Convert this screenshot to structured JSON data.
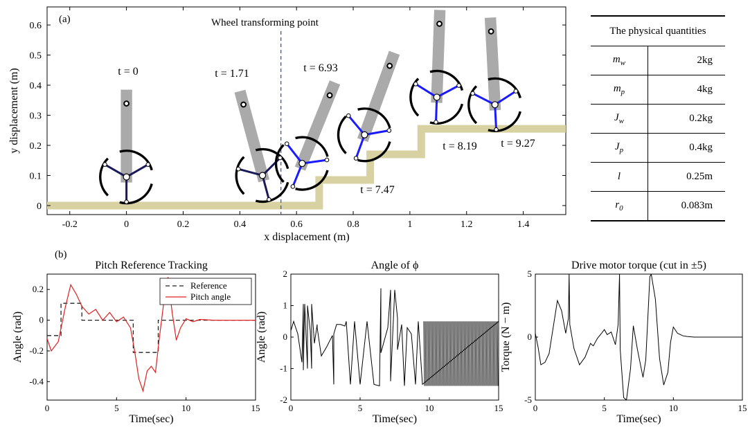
{
  "top": {
    "panel_label": "(a)",
    "annotation": "Wheel transforming point",
    "time_labels": [
      "t = 0",
      "t = 1.71",
      "t = 6.93",
      "t = 7.47",
      "t = 8.19",
      "t = 9.27"
    ],
    "x_ticks": [
      "-0.2",
      "0",
      "0.2",
      "0.4",
      "0.6",
      "0.8",
      "1",
      "1.2",
      "1.4"
    ],
    "y_ticks": [
      "0",
      "0.1",
      "0.2",
      "0.3",
      "0.4",
      "0.5",
      "0.6"
    ]
  },
  "table": {
    "header": "The physical quantities",
    "rows": [
      {
        "q": "m_w",
        "v": "2kg"
      },
      {
        "q": "m_p",
        "v": "4kg"
      },
      {
        "q": "J_w",
        "v": "0.2kg"
      },
      {
        "q": "J_p",
        "v": "0.4kg"
      },
      {
        "q": "l",
        "v": "0.25m"
      },
      {
        "q": "r_0",
        "v": "0.083m"
      }
    ]
  },
  "bottom": {
    "panel_label": "(b)",
    "xlabel": "Time(sec)",
    "x_ticks": [
      "0",
      "5",
      "10",
      "15"
    ],
    "pitch_title": "Pitch Reference Tracking",
    "pitch_y_ticks": [
      "0.2",
      "0",
      "-0.2",
      "-0.4"
    ],
    "phi_title": "Angle of ϕ",
    "phi_y_ticks": [
      "2",
      "1",
      "0",
      "-1",
      "-2"
    ],
    "torque_title": "Drive motor torque (cut in ±5)",
    "torque_y_ticks": [
      "5",
      "0",
      "-5"
    ]
  },
  "colors": {
    "ground": "#d8d2a2",
    "body": "#aaaaaa",
    "spoke": "#1a1aff",
    "hub": "#1a1a5a",
    "pitch": "#e02020",
    "reference": "#222222"
  },
  "chart_data": [
    {
      "type": "line",
      "title": "",
      "xlabel": "x displacement (m)",
      "ylabel": "y displacement (m)",
      "xlim": [
        -0.28,
        1.55
      ],
      "ylim": [
        -0.03,
        0.66
      ],
      "series": [
        {
          "values": [
            [
              -0.28,
              0
            ],
            [
              0.68,
              0
            ],
            [
              0.68,
              0.085
            ],
            [
              0.86,
              0.085
            ],
            [
              0.86,
              0.17
            ],
            [
              1.04,
              0.17
            ],
            [
              1.04,
              0.255
            ],
            [
              1.55,
              0.255
            ]
          ]
        }
      ]
    },
    {
      "type": "line",
      "title": "Pitch Reference Tracking",
      "xlabel": "Time(sec)",
      "ylabel": "Angle (rad)",
      "xlim": [
        0,
        15
      ],
      "ylim": [
        -0.52,
        0.3
      ],
      "legend": "top-right",
      "series": [
        {
          "name": "Reference",
          "x": [
            0,
            1.0,
            1.0,
            2.5,
            2.5,
            6.2,
            6.2,
            8.0,
            8.0,
            8.5,
            8.5,
            15
          ],
          "y": [
            -0.1,
            -0.1,
            0.11,
            0.11,
            0,
            0,
            -0.21,
            -0.21,
            0,
            0,
            0,
            0
          ]
        },
        {
          "name": "Pitch angle",
          "x": [
            0,
            0.3,
            0.8,
            1.3,
            1.7,
            2.1,
            2.5,
            3.0,
            3.5,
            4.0,
            4.5,
            5.0,
            5.5,
            6.0,
            6.3,
            6.6,
            6.9,
            7.2,
            7.5,
            7.8,
            8.1,
            8.4,
            8.7,
            9.0,
            9.3,
            9.6,
            10.0,
            10.5,
            11,
            12,
            15
          ],
          "y": [
            -0.12,
            -0.2,
            -0.14,
            0.08,
            0.23,
            0.17,
            0.09,
            0.04,
            0.07,
            0.0,
            0.05,
            -0.01,
            0.02,
            -0.05,
            -0.2,
            -0.38,
            -0.46,
            -0.33,
            -0.3,
            -0.34,
            -0.1,
            0.12,
            0.28,
            0.05,
            -0.13,
            -0.05,
            0.01,
            -0.01,
            0.005,
            0,
            0
          ]
        }
      ]
    },
    {
      "type": "line",
      "title": "Angle of ϕ",
      "xlabel": "Time(sec)",
      "ylabel": "Angle (rad)",
      "xlim": [
        0,
        15
      ],
      "ylim": [
        -2,
        2
      ],
      "series": [
        {
          "x": [
            0,
            0.2,
            0.5,
            0.8,
            0.9,
            0.9,
            1.0,
            1.2,
            1.2,
            1.4,
            1.5,
            1.5,
            1.7,
            1.9,
            1.9,
            2.2,
            2.6,
            3.0,
            3.1,
            3.1,
            3.3,
            3.6,
            3.9,
            4.0,
            4.3,
            4.6,
            5.0,
            5.5,
            6.0,
            6.4,
            6.5,
            6.5,
            7.0,
            7.2,
            7.2,
            7.5,
            7.7,
            7.7,
            8.0,
            8.2,
            8.4,
            8.7,
            9.0,
            9.2,
            9.5,
            15
          ],
          "y": [
            0.2,
            0.5,
            0.1,
            -0.8,
            1.05,
            -1.05,
            1.05,
            -1.0,
            1.0,
            0.2,
            -1.0,
            1.05,
            -0.2,
            0.4,
            0.3,
            -0.6,
            -0.3,
            0.05,
            -1.5,
            0.1,
            0.4,
            0.4,
            0.35,
            0.5,
            -1.5,
            0.5,
            -1.5,
            0.5,
            -1.5,
            -1.55,
            1.55,
            -0.5,
            0.3,
            1.5,
            -1.4,
            1.5,
            0.6,
            -0.4,
            0.4,
            -1.55,
            0.3,
            0.1,
            -1.5,
            0.5,
            -1.5,
            0.5
          ]
        }
      ]
    },
    {
      "type": "line",
      "title": "Drive motor torque (cut in ±5)",
      "xlabel": "Time(sec)",
      "ylabel": "Torque (N − m)",
      "xlim": [
        0,
        15
      ],
      "ylim": [
        -5,
        5
      ],
      "series": [
        {
          "x": [
            0,
            0.2,
            0.4,
            0.7,
            1.0,
            1.3,
            1.6,
            1.9,
            2.2,
            2.4,
            2.45,
            2.5,
            2.8,
            3.2,
            3.6,
            4.0,
            4.2,
            4.5,
            4.8,
            5.0,
            5.2,
            5.5,
            5.8,
            6.0,
            6.1,
            6.15,
            6.4,
            6.6,
            6.9,
            7.1,
            7.4,
            7.8,
            8.0,
            8.3,
            8.4,
            8.7,
            9.0,
            9.3,
            9.6,
            9.8,
            10.0,
            10.3,
            10.7,
            11.0,
            11.5,
            12,
            13,
            15
          ],
          "y": [
            0.3,
            -0.8,
            -2.2,
            -2.0,
            -1.3,
            0.8,
            2.9,
            2.1,
            0.3,
            1.5,
            5,
            1.0,
            -0.9,
            -2.2,
            -1.6,
            -0.5,
            -0.7,
            -0.1,
            0.3,
            0.6,
            0.2,
            0.4,
            -0.6,
            1.0,
            5,
            -1.0,
            -4.8,
            -5,
            -2.5,
            0.9,
            -1.0,
            -3.2,
            -1.8,
            4.8,
            5,
            3.0,
            -1.7,
            -3.8,
            -2.8,
            -0.4,
            0.8,
            0.3,
            0.1,
            0.05,
            0,
            0,
            0,
            0
          ]
        }
      ]
    }
  ]
}
